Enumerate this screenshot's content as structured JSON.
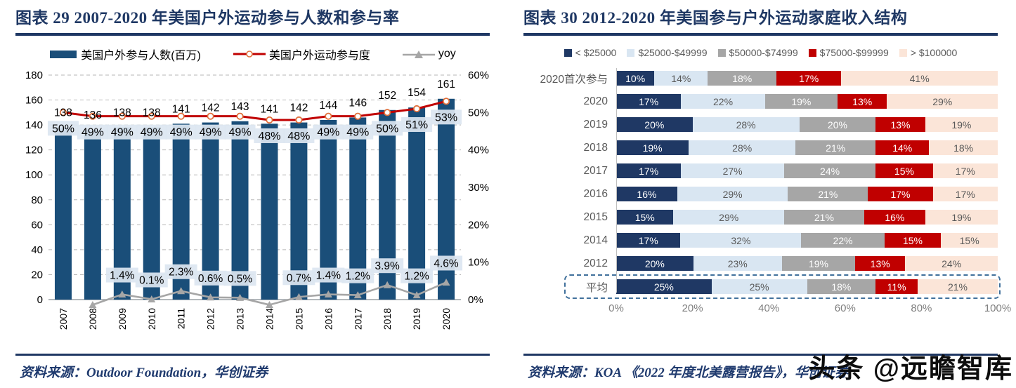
{
  "page": {
    "background": "#ffffff",
    "watermark": "头条 @远瞻智库"
  },
  "left_panel": {
    "title": "图表 29   2007-2020 年美国户外运动参与人数和参与率",
    "source_label": "资料来源：Outdoor Foundation，华创证券"
  },
  "right_panel": {
    "title": "图表 30   2012-2020 年美国参与户外运动家庭收入结构",
    "source_label": "资料来源：KOA 《2022 年度北美露营报告》，华创证券"
  },
  "chart_data": [
    {
      "type": "bar",
      "subtype": "combo-bar-line",
      "title": "2007-2020 年美国户外运动参与人数和参与率",
      "categories": [
        "2007",
        "2008",
        "2009",
        "2010",
        "2011",
        "2012",
        "2013",
        "2014",
        "2015",
        "2016",
        "2017",
        "2018",
        "2019",
        "2020"
      ],
      "series": [
        {
          "name": "美国户外参与人数(百万)",
          "type": "bar",
          "axis": "left",
          "color": "#1a4e79",
          "values": [
            138,
            136,
            138,
            138,
            141,
            142,
            143,
            141,
            142,
            144,
            146,
            152,
            154,
            161
          ]
        },
        {
          "name": "美国户外运动参与度",
          "type": "line",
          "axis": "right",
          "color": "#c00000",
          "marker": "circle-open",
          "marker_color": "#e0703c",
          "unit": "%",
          "values": [
            50,
            49,
            49,
            49,
            49,
            49,
            49,
            48,
            48,
            49,
            49,
            50,
            51,
            53
          ],
          "shown_labels": [
            "50%",
            "49%",
            "49%",
            "49%",
            "49%",
            "49%",
            "49%",
            "48%",
            "48%",
            "49%",
            "49%",
            "50%",
            "51%",
            "53%"
          ]
        },
        {
          "name": "yoy",
          "type": "line",
          "axis": "right",
          "color": "#a6a6a6",
          "marker": "triangle",
          "unit": "%",
          "values": [
            null,
            -1.4,
            1.4,
            0.1,
            2.3,
            0.6,
            0.5,
            -1.4,
            0.7,
            1.4,
            1.2,
            3.9,
            1.2,
            4.6
          ],
          "shown_labels": [
            null,
            null,
            "1.4%",
            "0.1%",
            "2.3%",
            "0.6%",
            "0.5%",
            null,
            "0.7%",
            "1.4%",
            "1.2%",
            "3.9%",
            "1.2%",
            "4.6%"
          ]
        }
      ],
      "left_axis": {
        "min": 0,
        "max": 180,
        "step": 20
      },
      "right_axis": {
        "min": 0,
        "max": 60,
        "step": 10,
        "unit": "%"
      },
      "label_bg": "#dce6f1",
      "grid": "dashed-horizontal"
    },
    {
      "type": "bar",
      "subtype": "stacked-horizontal",
      "title": "2012-2020 年美国参与户外运动家庭收入结构",
      "categories": [
        "2020首次参与",
        "2020",
        "2019",
        "2018",
        "2017",
        "2016",
        "2015",
        "2014",
        "2012",
        "平均"
      ],
      "series": [
        {
          "name": "< $25000",
          "color": "#1f3864",
          "text_color": "#ffffff",
          "values": [
            10,
            17,
            20,
            19,
            17,
            16,
            15,
            17,
            20,
            25
          ]
        },
        {
          "name": "$25000-$49999",
          "color": "#d9e6f2",
          "text_color": "#595959",
          "values": [
            14,
            22,
            28,
            28,
            27,
            29,
            29,
            32,
            23,
            25
          ]
        },
        {
          "name": "$50000-$74999",
          "color": "#a6a6a6",
          "text_color": "#ffffff",
          "values": [
            18,
            19,
            20,
            21,
            24,
            21,
            21,
            22,
            19,
            18
          ]
        },
        {
          "name": "$75000-$99999",
          "color": "#c00000",
          "text_color": "#ffffff",
          "values": [
            17,
            13,
            13,
            14,
            15,
            17,
            16,
            15,
            13,
            11
          ]
        },
        {
          "name": "> $100000",
          "color": "#fbe5d8",
          "text_color": "#595959",
          "values": [
            41,
            29,
            19,
            18,
            17,
            17,
            19,
            15,
            24,
            21
          ]
        }
      ],
      "x_axis": {
        "min": 0,
        "max": 100,
        "step": 20,
        "ticks": [
          "0%",
          "20%",
          "40%",
          "60%",
          "80%",
          "100%"
        ]
      },
      "unit": "%",
      "highlighted_category": "平均",
      "highlight_border_color": "#41719c"
    }
  ]
}
